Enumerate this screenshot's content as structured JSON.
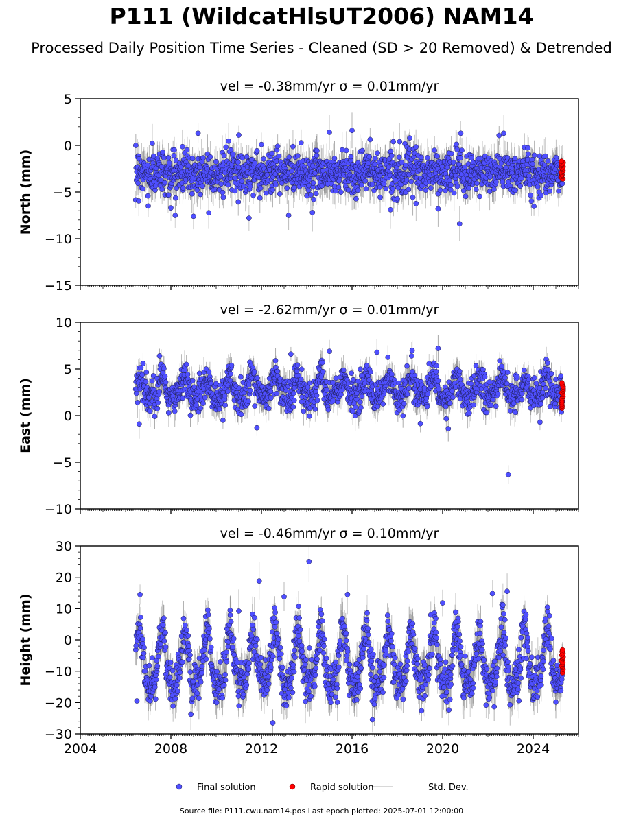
{
  "figure": {
    "title": "P111 (WildcatHlsUT2006) NAM14",
    "subtitle": "Processed Daily Position Time Series - Cleaned (SD > 20 Removed) & Detrended",
    "footer": "Source file: P111.cwu.nam14.pos  Last epoch plotted: 2025-07-01 12:00:00"
  },
  "legend": {
    "placement": "bottom-center",
    "items": [
      {
        "label": "Final solution",
        "marker": "circle",
        "color": "#4f4fff"
      },
      {
        "label": "Rapid solution",
        "marker": "circle",
        "color": "#ff0000"
      },
      {
        "label": "Std. Dev.",
        "marker": "line",
        "color": "#cccccc"
      }
    ]
  },
  "colors": {
    "final_fill": "#4f4fff",
    "final_edge": "#1a1a4a",
    "rapid_fill": "#ff0000",
    "rapid_edge": "#5a0000",
    "std_dev": "#808080"
  },
  "chart_data": [
    {
      "type": "scatter",
      "title": "vel = -0.38mm/yr   σ = 0.01mm/yr",
      "ylabel": "North (mm)",
      "xlim": [
        2004,
        2026
      ],
      "ylim": [
        -15,
        5
      ],
      "yticks": [
        5,
        0,
        -5,
        -10,
        -15
      ],
      "xticks": [
        2004,
        2008,
        2012,
        2016,
        2020,
        2024
      ],
      "show_xtick_labels": false,
      "grid": false,
      "final_solution": {
        "time_span": [
          2006.45,
          2025.3
        ],
        "mean": -2.9,
        "spread_sd": 1.1,
        "seasonal_amplitude": 0.25,
        "std_dev_mm": 1.5,
        "outliers": [
          {
            "x": 2011.45,
            "y": -7.8
          },
          {
            "x": 2013.2,
            "y": -7.5
          },
          {
            "x": 2014.25,
            "y": -7.2
          },
          {
            "x": 2020.75,
            "y": -8.4
          },
          {
            "x": 2008.0,
            "y": -6.7
          },
          {
            "x": 2009.0,
            "y": -7.6
          },
          {
            "x": 2019.8,
            "y": -6.8
          },
          {
            "x": 2007.0,
            "y": -6.5
          },
          {
            "x": 2016.0,
            "y": 1.6
          },
          {
            "x": 2015.0,
            "y": 1.4
          },
          {
            "x": 2022.7,
            "y": 1.3
          },
          {
            "x": 2020.8,
            "y": 1.3
          },
          {
            "x": 2009.2,
            "y": 1.3
          },
          {
            "x": 2011.0,
            "y": 1.1
          },
          {
            "x": 2006.45,
            "y": 0.0
          },
          {
            "x": 2018.1,
            "y": 0.4
          },
          {
            "x": 2012.0,
            "y": 0.1
          }
        ]
      },
      "rapid_solution": {
        "time_span": [
          2025.25,
          2025.5
        ],
        "mean": -2.6,
        "range": [
          -3.6,
          -1.7
        ]
      }
    },
    {
      "type": "scatter",
      "title": "vel = -2.62mm/yr   σ = 0.01mm/yr",
      "ylabel": "East (mm)",
      "xlim": [
        2004,
        2026
      ],
      "ylim": [
        -10,
        10
      ],
      "yticks": [
        10,
        5,
        0,
        -5,
        -10
      ],
      "xticks": [
        2004,
        2008,
        2012,
        2016,
        2020,
        2024
      ],
      "show_xtick_labels": false,
      "grid": false,
      "final_solution": {
        "time_span": [
          2006.45,
          2025.3
        ],
        "mean": 2.8,
        "spread_sd": 0.9,
        "seasonal_amplitude": 1.1,
        "std_dev_mm": 1.2,
        "outliers": [
          {
            "x": 2022.9,
            "y": -6.3
          },
          {
            "x": 2020.25,
            "y": -1.4
          },
          {
            "x": 2011.8,
            "y": -1.3
          },
          {
            "x": 2006.6,
            "y": -0.9
          },
          {
            "x": 2019.8,
            "y": 7.2
          },
          {
            "x": 2015.0,
            "y": 6.9
          },
          {
            "x": 2017.1,
            "y": 6.8
          },
          {
            "x": 2013.3,
            "y": 6.6
          },
          {
            "x": 2007.5,
            "y": 6.4
          },
          {
            "x": 2024.3,
            "y": -0.7
          },
          {
            "x": 2010.3,
            "y": -0.5
          }
        ]
      },
      "rapid_solution": {
        "time_span": [
          2025.25,
          2025.5
        ],
        "mean": 2.3,
        "range": [
          0.8,
          3.5
        ]
      }
    },
    {
      "type": "scatter",
      "title": "vel = -0.46mm/yr   σ = 0.10mm/yr",
      "ylabel": "Height (mm)",
      "xlim": [
        2004,
        2026
      ],
      "ylim": [
        -30,
        30
      ],
      "yticks": [
        30,
        20,
        10,
        0,
        -10,
        -20,
        -30
      ],
      "xticks": [
        2004,
        2008,
        2012,
        2016,
        2020,
        2024
      ],
      "xtick_labels": [
        "2004",
        "2008",
        "2012",
        "2016",
        "2020",
        "2024"
      ],
      "show_xtick_labels": true,
      "grid": false,
      "final_solution": {
        "time_span": [
          2006.45,
          2025.3
        ],
        "mean": -7.5,
        "spread_sd": 3.3,
        "seasonal_amplitude": 8.5,
        "std_dev_mm": 5.0,
        "outliers": [
          {
            "x": 2014.1,
            "y": 25.0
          },
          {
            "x": 2011.9,
            "y": 18.8
          },
          {
            "x": 2012.5,
            "y": -26.5
          },
          {
            "x": 2016.9,
            "y": -25.5
          },
          {
            "x": 2015.8,
            "y": 14.5
          },
          {
            "x": 2022.2,
            "y": 14.8
          },
          {
            "x": 2013.0,
            "y": 13.8
          },
          {
            "x": 2022.85,
            "y": 15.5
          },
          {
            "x": 2006.5,
            "y": -19.5
          },
          {
            "x": 2020.0,
            "y": 11.8
          },
          {
            "x": 2011.0,
            "y": 9.2
          }
        ]
      },
      "rapid_solution": {
        "time_span": [
          2025.25,
          2025.5
        ],
        "mean": -6.5,
        "range": [
          -10.5,
          -3.2
        ]
      }
    }
  ]
}
